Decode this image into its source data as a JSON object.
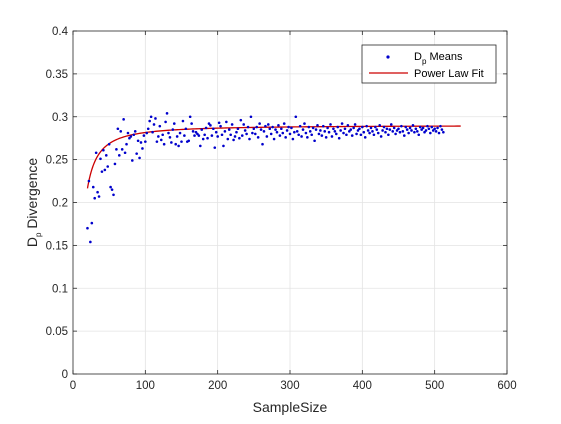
{
  "chart_data": {
    "type": "scatter",
    "xlabel": "SampleSize",
    "ylabel_main": "D",
    "ylabel_sub": "p",
    "ylabel_rest": " Divergence",
    "xlim": [
      0,
      600
    ],
    "ylim": [
      0,
      0.4
    ],
    "xticks": [
      0,
      100,
      200,
      300,
      400,
      500,
      600
    ],
    "yticks": [
      0,
      0.05,
      0.1,
      0.15,
      0.2,
      0.25,
      0.3,
      0.35,
      0.4
    ],
    "grid": true,
    "legend_position": "top-right",
    "colors": {
      "means": "#0000cc",
      "fit": "#cc0000",
      "grid": "#e3e3e3",
      "axis": "#262626"
    },
    "series": [
      {
        "name_main": "D",
        "name_sub": "p",
        "name_rest": " Means",
        "kind": "scatter",
        "x_start": 20,
        "x_step": 2,
        "y": [
          0.17,
          0.225,
          0.154,
          0.176,
          0.218,
          0.205,
          0.258,
          0.212,
          0.207,
          0.251,
          0.236,
          0.261,
          0.238,
          0.255,
          0.242,
          0.268,
          0.218,
          0.215,
          0.209,
          0.245,
          0.262,
          0.286,
          0.255,
          0.283,
          0.262,
          0.297,
          0.258,
          0.268,
          0.281,
          0.275,
          0.277,
          0.249,
          0.279,
          0.283,
          0.257,
          0.272,
          0.252,
          0.27,
          0.263,
          0.278,
          0.271,
          0.281,
          0.286,
          0.295,
          0.3,
          0.282,
          0.291,
          0.298,
          0.271,
          0.277,
          0.289,
          0.273,
          0.279,
          0.268,
          0.294,
          0.304,
          0.281,
          0.276,
          0.27,
          0.285,
          0.292,
          0.268,
          0.277,
          0.266,
          0.281,
          0.271,
          0.295,
          0.278,
          0.286,
          0.271,
          0.272,
          0.3,
          0.292,
          0.283,
          0.278,
          0.282,
          0.28,
          0.278,
          0.266,
          0.285,
          0.274,
          0.279,
          0.287,
          0.275,
          0.292,
          0.29,
          0.278,
          0.286,
          0.264,
          0.282,
          0.277,
          0.293,
          0.289,
          0.279,
          0.266,
          0.283,
          0.294,
          0.274,
          0.285,
          0.279,
          0.291,
          0.273,
          0.277,
          0.282,
          0.286,
          0.275,
          0.296,
          0.278,
          0.291,
          0.284,
          0.28,
          0.288,
          0.274,
          0.3,
          0.281,
          0.286,
          0.28,
          0.288,
          0.276,
          0.292,
          0.285,
          0.268,
          0.283,
          0.289,
          0.277,
          0.291,
          0.286,
          0.28,
          0.288,
          0.274,
          0.285,
          0.282,
          0.29,
          0.278,
          0.286,
          0.281,
          0.292,
          0.276,
          0.284,
          0.288,
          0.28,
          0.287,
          0.274,
          0.282,
          0.3,
          0.283,
          0.279,
          0.289,
          0.277,
          0.285,
          0.292,
          0.281,
          0.276,
          0.288,
          0.283,
          0.279,
          0.287,
          0.272,
          0.285,
          0.29,
          0.28,
          0.284,
          0.278,
          0.289,
          0.283,
          0.276,
          0.287,
          0.282,
          0.291,
          0.277,
          0.286,
          0.283,
          0.28,
          0.288,
          0.275,
          0.284,
          0.292,
          0.281,
          0.286,
          0.279,
          0.29,
          0.283,
          0.285,
          0.278,
          0.287,
          0.291,
          0.28,
          0.284,
          0.286,
          0.279,
          0.288,
          0.282,
          0.276,
          0.289,
          0.284,
          0.281,
          0.287,
          0.283,
          0.279,
          0.288,
          0.285,
          0.281,
          0.29,
          0.277,
          0.284,
          0.288,
          0.282,
          0.286,
          0.279,
          0.285,
          0.291,
          0.283,
          0.287,
          0.28,
          0.284,
          0.286,
          0.282,
          0.289,
          0.283,
          0.278,
          0.288,
          0.285,
          0.281,
          0.287,
          0.284,
          0.29,
          0.282,
          0.286,
          0.283,
          0.279,
          0.288,
          0.285,
          0.287,
          0.282,
          0.284,
          0.289,
          0.286,
          0.281,
          0.288,
          0.284,
          0.286,
          0.283,
          0.287,
          0.281,
          0.289,
          0.285,
          0.282
        ]
      },
      {
        "name": "Power Law Fit",
        "kind": "line",
        "fit_asymptote": 0.29,
        "fit_coefficient": 4.2,
        "fit_exponent": 1.35,
        "x_range": [
          20,
          536
        ]
      }
    ]
  }
}
